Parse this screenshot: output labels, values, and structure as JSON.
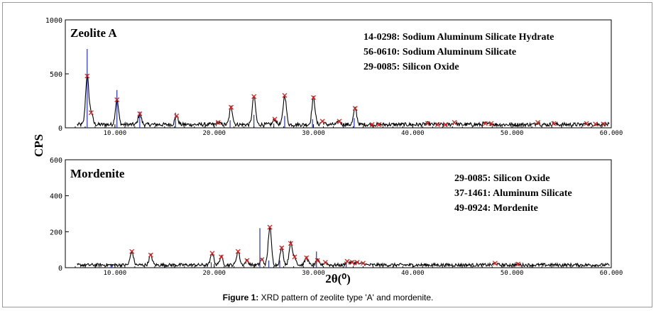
{
  "caption": {
    "label": "Figure 1:",
    "text": "XRD pattern of zeolite type 'A' and mordenite."
  },
  "axes": {
    "ylabel": "CPS",
    "xlabel": "2θ(⁰)"
  },
  "chart_data": [
    {
      "type": "line",
      "panel_title": "Zeolite A",
      "xlim": [
        5,
        60
      ],
      "ylim": [
        0,
        1000
      ],
      "x_ticks": [
        "10.000",
        "20.000",
        "30.000",
        "40.000",
        "50.000",
        "60.000"
      ],
      "y_ticks": [
        "0",
        "500",
        "1000"
      ],
      "legend": [
        "14-0298: Sodium Aluminum Silicate Hydrate",
        "56-0610: Sodium Aluminum Silicate",
        "29-0085: Silicon Oxide"
      ],
      "baseline": 30,
      "peaks": [
        {
          "x": 7.2,
          "y": 480
        },
        {
          "x": 7.6,
          "y": 140
        },
        {
          "x": 10.2,
          "y": 260
        },
        {
          "x": 12.5,
          "y": 130
        },
        {
          "x": 16.2,
          "y": 110
        },
        {
          "x": 20.4,
          "y": 50
        },
        {
          "x": 21.7,
          "y": 190
        },
        {
          "x": 24.0,
          "y": 290
        },
        {
          "x": 26.1,
          "y": 80
        },
        {
          "x": 27.1,
          "y": 300
        },
        {
          "x": 30.0,
          "y": 280
        },
        {
          "x": 30.9,
          "y": 60
        },
        {
          "x": 32.6,
          "y": 60
        },
        {
          "x": 34.2,
          "y": 180
        },
        {
          "x": 35.9,
          "y": 30
        },
        {
          "x": 36.6,
          "y": 30
        },
        {
          "x": 41.5,
          "y": 40
        },
        {
          "x": 42.5,
          "y": 30
        },
        {
          "x": 43.3,
          "y": 30
        },
        {
          "x": 44.2,
          "y": 50
        },
        {
          "x": 47.3,
          "y": 40
        },
        {
          "x": 47.9,
          "y": 40
        },
        {
          "x": 52.6,
          "y": 50
        },
        {
          "x": 54.2,
          "y": 40
        },
        {
          "x": 57.5,
          "y": 40
        },
        {
          "x": 58.4,
          "y": 35
        },
        {
          "x": 59.2,
          "y": 35
        }
      ],
      "reference_lines": [
        {
          "x": 7.2,
          "y": 730
        },
        {
          "x": 10.2,
          "y": 350
        },
        {
          "x": 12.5,
          "y": 150
        },
        {
          "x": 16.1,
          "y": 140
        },
        {
          "x": 21.6,
          "y": 70
        },
        {
          "x": 24.0,
          "y": 120
        },
        {
          "x": 27.1,
          "y": 110
        },
        {
          "x": 29.9,
          "y": 80
        },
        {
          "x": 26.0,
          "y": 40
        },
        {
          "x": 34.1,
          "y": 90
        },
        {
          "x": 33.0,
          "y": 40
        }
      ]
    },
    {
      "type": "line",
      "panel_title": "Mordenite",
      "xlim": [
        5,
        60
      ],
      "ylim": [
        0,
        600
      ],
      "x_ticks": [
        "10.000",
        "20.000",
        "30.000",
        "40.000",
        "50.000",
        "60.000"
      ],
      "y_ticks": [
        "0",
        "200",
        "400",
        "600"
      ],
      "legend": [
        "29-0085: Silicon Oxide",
        "37-1461: Aluminum Silicate",
        "49-0924: Mordenite"
      ],
      "baseline": 15,
      "peaks": [
        {
          "x": 11.7,
          "y": 90
        },
        {
          "x": 13.6,
          "y": 70
        },
        {
          "x": 19.8,
          "y": 80
        },
        {
          "x": 20.7,
          "y": 60
        },
        {
          "x": 22.4,
          "y": 90
        },
        {
          "x": 23.3,
          "y": 40
        },
        {
          "x": 24.8,
          "y": 45
        },
        {
          "x": 25.6,
          "y": 225
        },
        {
          "x": 26.8,
          "y": 110
        },
        {
          "x": 27.7,
          "y": 135
        },
        {
          "x": 28.1,
          "y": 60
        },
        {
          "x": 29.3,
          "y": 55
        },
        {
          "x": 30.4,
          "y": 40
        },
        {
          "x": 31.2,
          "y": 30
        },
        {
          "x": 33.4,
          "y": 35
        },
        {
          "x": 33.9,
          "y": 30
        },
        {
          "x": 34.4,
          "y": 30
        },
        {
          "x": 35.0,
          "y": 25
        },
        {
          "x": 48.3,
          "y": 25
        },
        {
          "x": 50.6,
          "y": 20
        }
      ],
      "reference_lines": [
        {
          "x": 24.6,
          "y": 220
        },
        {
          "x": 30.3,
          "y": 90
        },
        {
          "x": 25.5,
          "y": 40
        },
        {
          "x": 26.6,
          "y": 40
        },
        {
          "x": 19.7,
          "y": 30
        },
        {
          "x": 33.3,
          "y": 30
        },
        {
          "x": 15.0,
          "y": 20
        },
        {
          "x": 9.6,
          "y": 20
        }
      ]
    }
  ]
}
